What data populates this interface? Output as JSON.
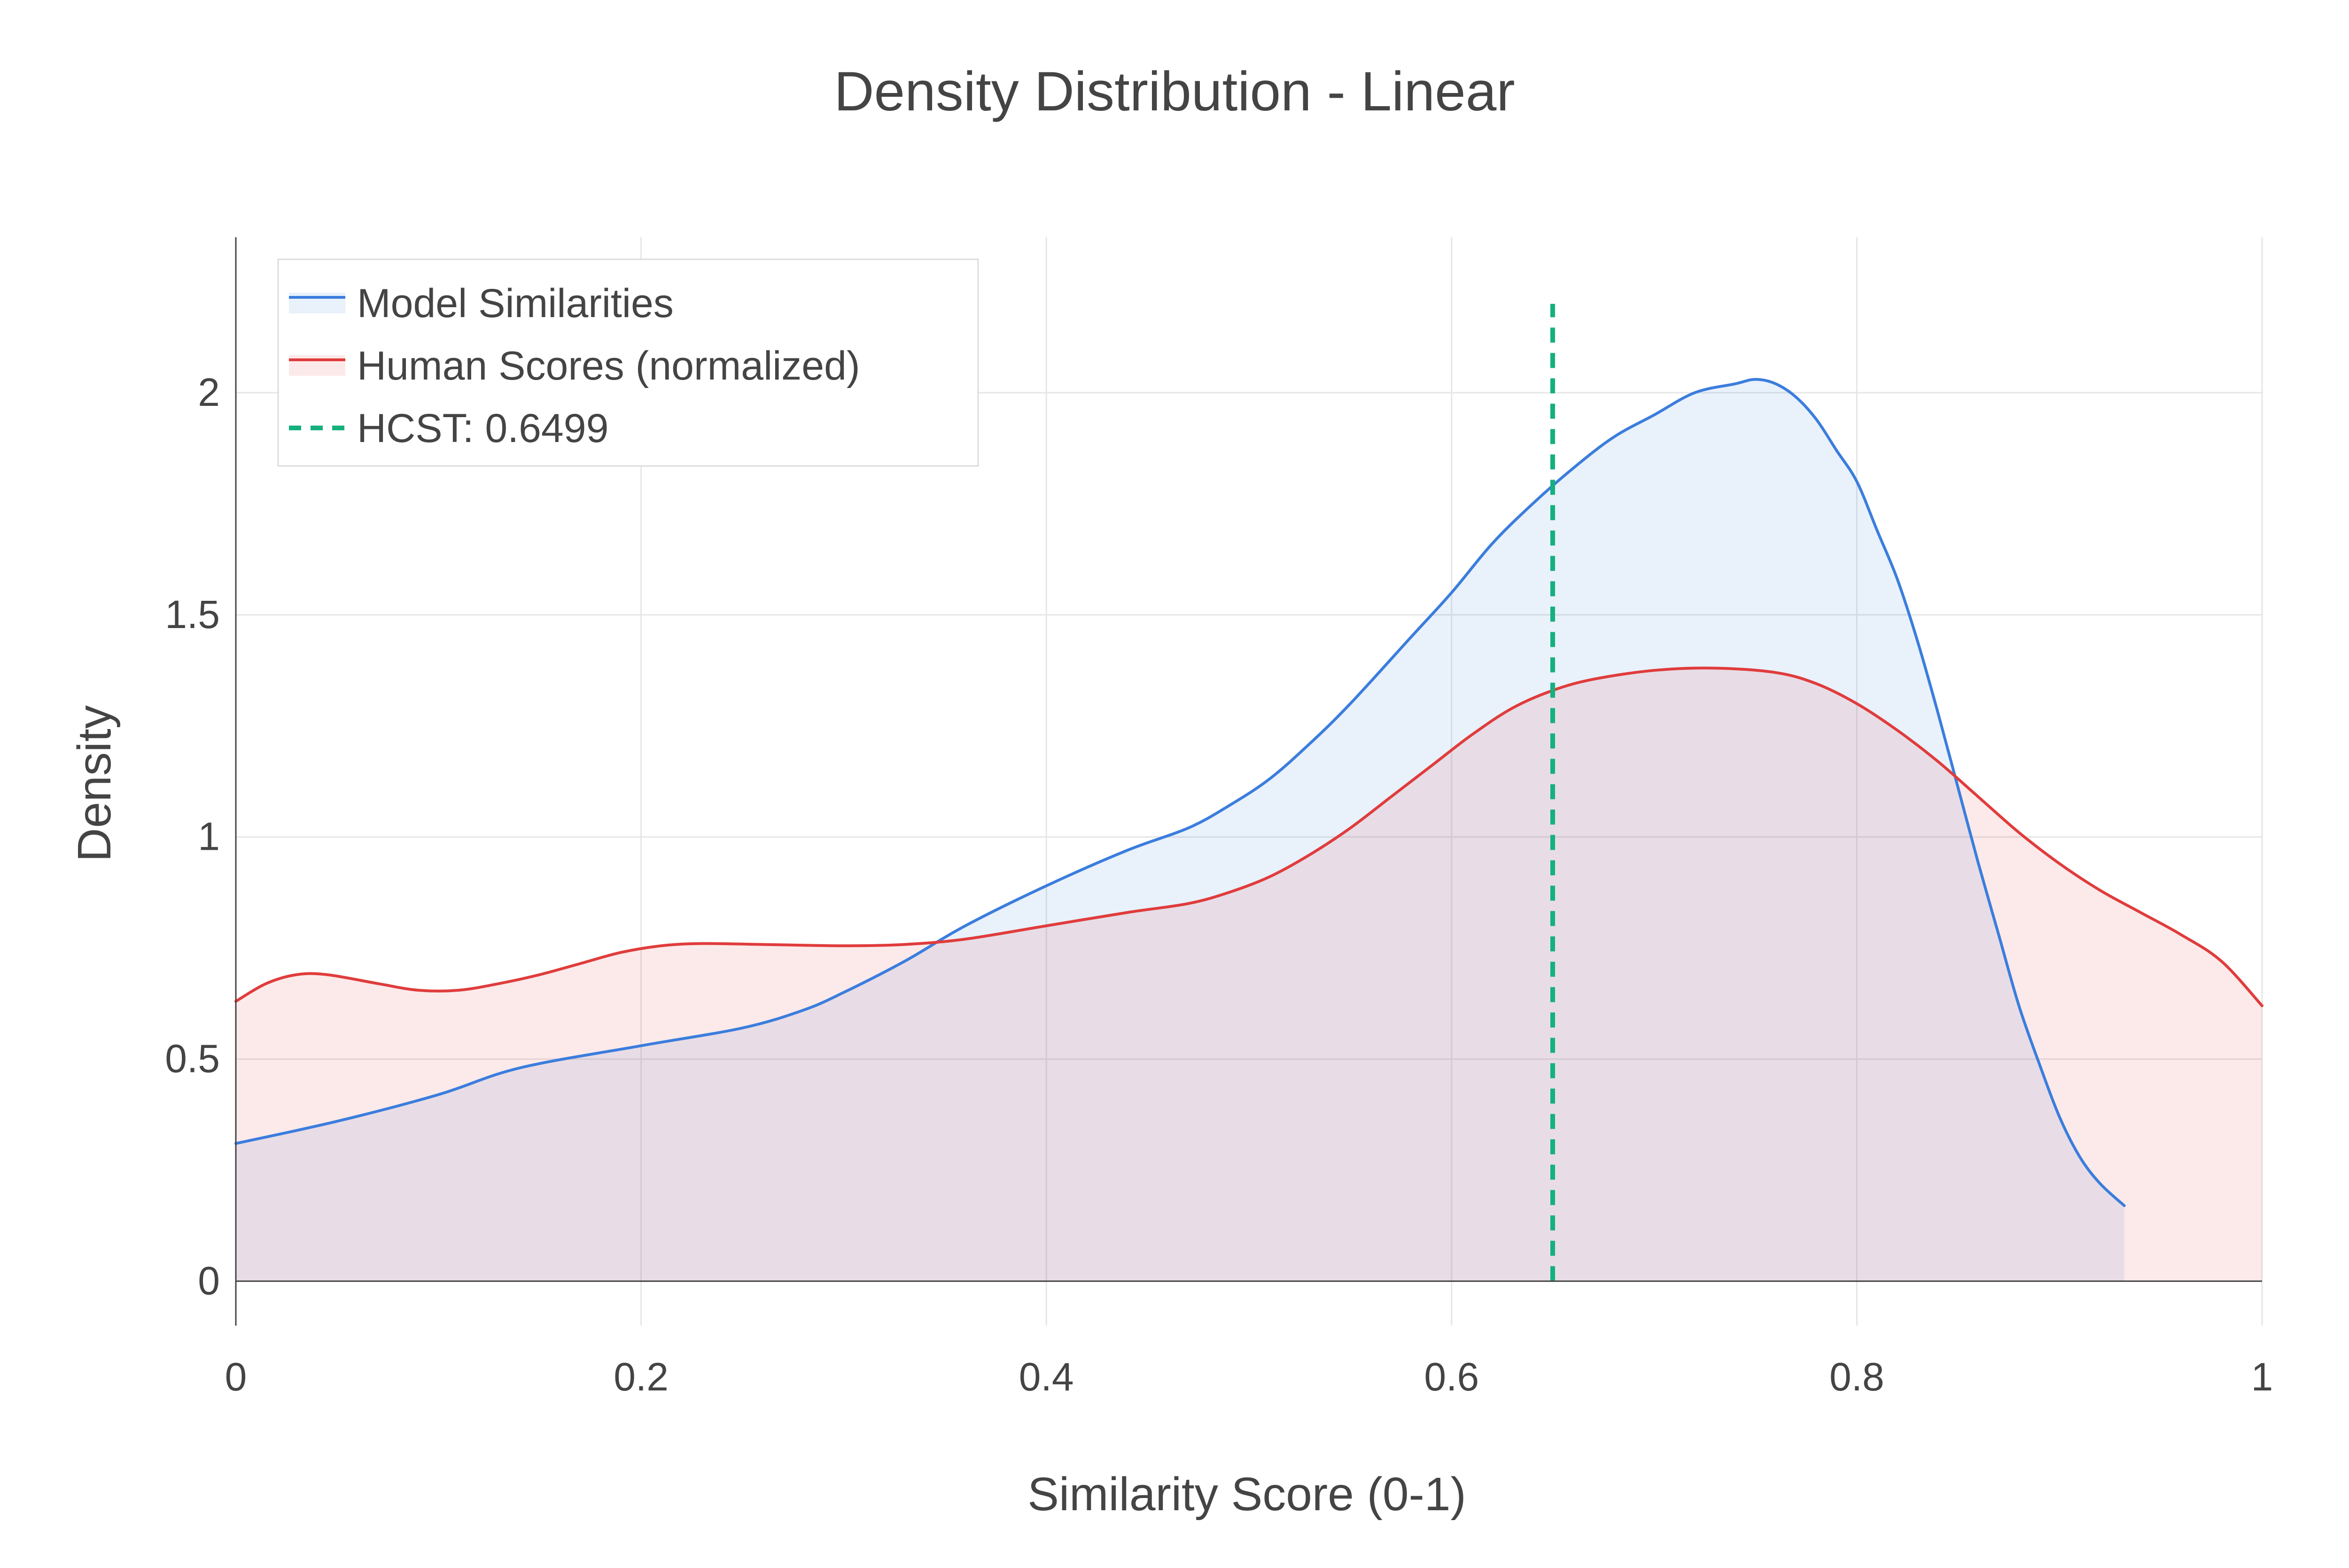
{
  "chart_data": {
    "type": "area",
    "title": "Density Distribution - Linear",
    "xlabel": "Similarity Score (0-1)",
    "ylabel": "Density",
    "xlim": [
      0,
      1
    ],
    "ylim": [
      -0.1,
      2.35
    ],
    "x_ticks": [
      0,
      0.2,
      0.4,
      0.6,
      0.8,
      1
    ],
    "x_tick_labels": [
      "0",
      "0.2",
      "0.4",
      "0.6",
      "0.8",
      "1"
    ],
    "y_ticks": [
      0,
      0.5,
      1,
      1.5,
      2
    ],
    "y_tick_labels": [
      "0",
      "0.5",
      "1",
      "1.5",
      "2"
    ],
    "grid": true,
    "legend_position": "top-left",
    "series": [
      {
        "name": "Model Similarities",
        "color": "#3b7ddd",
        "fill": "rgba(59,125,221,0.11)",
        "x": [
          0,
          0.05,
          0.1,
          0.14,
          0.2,
          0.25,
          0.28,
          0.3,
          0.33,
          0.36,
          0.4,
          0.44,
          0.47,
          0.49,
          0.51,
          0.53,
          0.55,
          0.58,
          0.6,
          0.62,
          0.64,
          0.66,
          0.68,
          0.7,
          0.72,
          0.74,
          0.75,
          0.76,
          0.77,
          0.78,
          0.79,
          0.8,
          0.81,
          0.82,
          0.83,
          0.84,
          0.85,
          0.86,
          0.87,
          0.88,
          0.89,
          0.9,
          0.91,
          0.92,
          0.932
        ],
        "y": [
          0.31,
          0.36,
          0.42,
          0.48,
          0.53,
          0.57,
          0.61,
          0.65,
          0.72,
          0.8,
          0.89,
          0.97,
          1.02,
          1.07,
          1.13,
          1.21,
          1.3,
          1.45,
          1.55,
          1.66,
          1.75,
          1.83,
          1.9,
          1.95,
          2.0,
          2.02,
          2.03,
          2.02,
          1.99,
          1.94,
          1.87,
          1.8,
          1.69,
          1.58,
          1.44,
          1.28,
          1.11,
          0.94,
          0.78,
          0.62,
          0.49,
          0.37,
          0.28,
          0.22,
          0.17
        ]
      },
      {
        "name": "Human Scores (normalized)",
        "color": "#e03c3c",
        "fill": "rgba(224,60,60,0.11)",
        "x": [
          0,
          0.015,
          0.03,
          0.045,
          0.07,
          0.09,
          0.11,
          0.13,
          0.15,
          0.17,
          0.19,
          0.21,
          0.23,
          0.26,
          0.3,
          0.33,
          0.36,
          0.4,
          0.44,
          0.47,
          0.49,
          0.51,
          0.53,
          0.55,
          0.57,
          0.59,
          0.61,
          0.63,
          0.65,
          0.67,
          0.7,
          0.73,
          0.76,
          0.78,
          0.8,
          0.82,
          0.84,
          0.86,
          0.88,
          0.9,
          0.92,
          0.94,
          0.96,
          0.98,
          1.0
        ],
        "y": [
          0.63,
          0.67,
          0.69,
          0.69,
          0.67,
          0.655,
          0.655,
          0.67,
          0.69,
          0.715,
          0.74,
          0.755,
          0.76,
          0.758,
          0.755,
          0.758,
          0.77,
          0.8,
          0.83,
          0.85,
          0.875,
          0.91,
          0.96,
          1.02,
          1.09,
          1.16,
          1.23,
          1.29,
          1.33,
          1.355,
          1.375,
          1.38,
          1.37,
          1.345,
          1.3,
          1.24,
          1.17,
          1.09,
          1.01,
          0.94,
          0.88,
          0.83,
          0.78,
          0.72,
          0.62
        ]
      },
      {
        "name": "HCST: 0.6499",
        "color": "#14b07e",
        "type": "vline",
        "x": 0.6499,
        "y_range": [
          0,
          2.2
        ]
      }
    ]
  }
}
